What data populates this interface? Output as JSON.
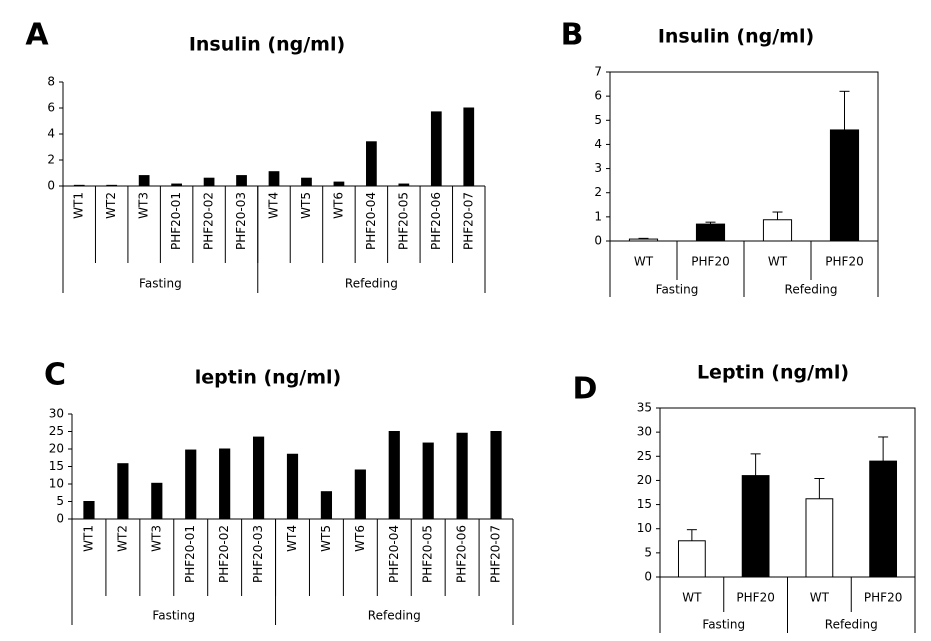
{
  "chart_data": [
    {
      "type": "bar",
      "panel": "A",
      "title": "Insulin (ng/ml)",
      "categories": [
        "WT1",
        "WT2",
        "WT3",
        "PHF20-01",
        "PHF20-02",
        "PHF20-03",
        "WT4",
        "WT5",
        "WT6",
        "PHF20-04",
        "PHF20-05",
        "PHF20-06",
        "PHF20-07"
      ],
      "groups": [
        {
          "label": "Fasting",
          "count": 6
        },
        {
          "label": "Refeding",
          "count": 7
        }
      ],
      "values": [
        0.05,
        0.05,
        0.8,
        0.15,
        0.6,
        0.8,
        1.1,
        0.6,
        0.3,
        3.4,
        0.15,
        5.7,
        6.0
      ],
      "color": "#000000",
      "ylim": [
        0,
        8
      ],
      "yticks": [
        0,
        2,
        4,
        6,
        8
      ],
      "grid": false
    },
    {
      "type": "bar",
      "panel": "B",
      "title": "Insulin (ng/ml)",
      "categories": [
        "WT",
        "PHF20",
        "WT",
        "PHF20"
      ],
      "groups": [
        {
          "label": "Fasting",
          "count": 2
        },
        {
          "label": "Refeding",
          "count": 2
        }
      ],
      "values": [
        0.08,
        0.7,
        0.88,
        4.6
      ],
      "errors": [
        0.03,
        0.08,
        0.32,
        1.6
      ],
      "colors": [
        "#ffffff",
        "#000000",
        "#ffffff",
        "#000000"
      ],
      "ylim": [
        0,
        7
      ],
      "yticks": [
        0,
        1,
        2,
        3,
        4,
        5,
        6,
        7
      ],
      "grid": false
    },
    {
      "type": "bar",
      "panel": "C",
      "title": "leptin (ng/ml)",
      "categories": [
        "WT1",
        "WT2",
        "WT3",
        "PHF20-01",
        "PHF20-02",
        "PHF20-03",
        "WT4",
        "WT5",
        "WT6",
        "PHF20-04",
        "PHF20-05",
        "PHF20-06",
        "PHF20-07"
      ],
      "groups": [
        {
          "label": "Fasting",
          "count": 6
        },
        {
          "label": "Refeding",
          "count": 7
        }
      ],
      "values": [
        5,
        15.8,
        10.2,
        19.7,
        20,
        23.4,
        18.5,
        7.8,
        14,
        25,
        21.7,
        24.5,
        25
      ],
      "color": "#000000",
      "ylim": [
        0,
        30
      ],
      "yticks": [
        0,
        5,
        10,
        15,
        20,
        25,
        30
      ],
      "grid": false
    },
    {
      "type": "bar",
      "panel": "D",
      "title": "Leptin (ng/ml)",
      "categories": [
        "WT",
        "PHF20",
        "WT",
        "PHF20"
      ],
      "groups": [
        {
          "label": "Fasting",
          "count": 2
        },
        {
          "label": "Refeding",
          "count": 2
        }
      ],
      "values": [
        7.5,
        21,
        16.2,
        24
      ],
      "errors": [
        2.3,
        4.5,
        4.2,
        5
      ],
      "colors": [
        "#ffffff",
        "#000000",
        "#ffffff",
        "#000000"
      ],
      "ylim": [
        0,
        35
      ],
      "yticks": [
        0,
        5,
        10,
        15,
        20,
        25,
        30,
        35
      ],
      "grid": false
    }
  ]
}
